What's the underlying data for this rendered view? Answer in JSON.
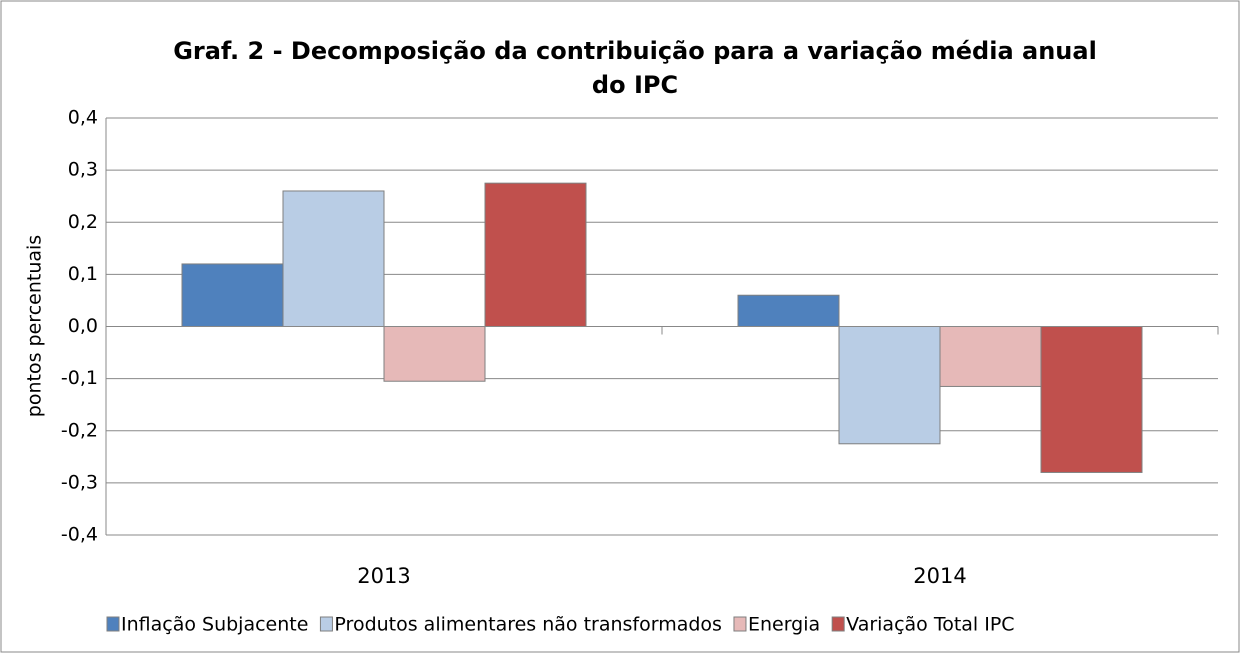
{
  "chart_data": {
    "type": "bar",
    "title": [
      "Graf. 2 - Decomposição da contribuição para a variação média anual",
      "do IPC"
    ],
    "ylabel": "pontos percentuais",
    "categories": [
      "2013",
      "2014"
    ],
    "series": [
      {
        "name": "Inflação Subjacente",
        "color": "#4f81bd",
        "values": [
          0.12,
          0.06
        ]
      },
      {
        "name": "Produtos alimentares não transformados",
        "color": "#b9cde5",
        "values": [
          0.26,
          -0.225
        ]
      },
      {
        "name": "Energia",
        "color": "#e6b9b8",
        "values": [
          -0.105,
          -0.115
        ]
      },
      {
        "name": "Variação Total IPC",
        "color": "#c0504d",
        "values": [
          0.275,
          -0.28
        ]
      }
    ],
    "ylim": [
      -0.4,
      0.4
    ],
    "yticks": [
      {
        "value": -0.4,
        "label": "-0,4"
      },
      {
        "value": -0.3,
        "label": "-0,3"
      },
      {
        "value": -0.2,
        "label": "-0,2"
      },
      {
        "value": -0.1,
        "label": "-0,1"
      },
      {
        "value": 0,
        "label": "0,0"
      },
      {
        "value": 0.1,
        "label": "0,1"
      },
      {
        "value": 0.2,
        "label": "0,2"
      },
      {
        "value": 0.3,
        "label": "0,3"
      },
      {
        "value": 0.4,
        "label": "0,4"
      }
    ],
    "grid": true,
    "legend": "bottom"
  }
}
